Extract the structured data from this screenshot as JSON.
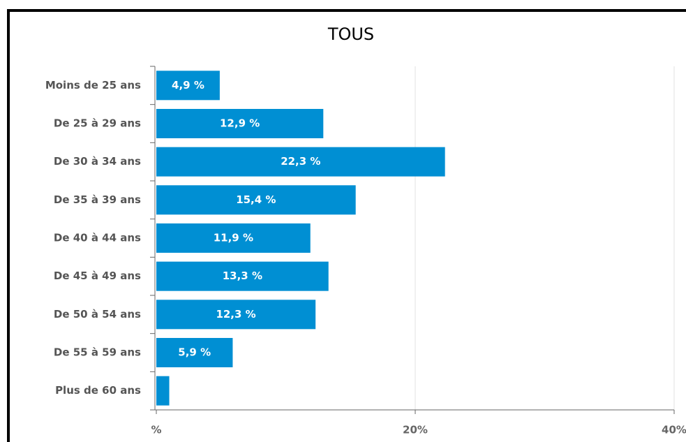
{
  "chart_data": {
    "type": "bar",
    "orientation": "horizontal",
    "title": "TOUS",
    "categories": [
      "Moins de 25 ans",
      "De 25 à 29 ans",
      "De 30 à 34 ans",
      "De 35 à 39 ans",
      "De 40 à 44 ans",
      "De 45 à 49 ans",
      "De 50 à 54 ans",
      "De 55 à 59 ans",
      "Plus de 60 ans"
    ],
    "values": [
      4.9,
      12.9,
      22.3,
      15.4,
      11.9,
      13.3,
      12.3,
      5.9,
      1.0
    ],
    "value_labels": [
      "4,9 %",
      "12,9 %",
      "22,3 %",
      "15,4 %",
      "11,9 %",
      "13,3 %",
      "12,3 %",
      "5,9 %",
      null
    ],
    "color": "#008fd3",
    "xlim": [
      0,
      40
    ],
    "xticks": [
      {
        "value": 0,
        "label": "%"
      },
      {
        "value": 20,
        "label": "20%"
      },
      {
        "value": 40,
        "label": "40%"
      }
    ],
    "grid": true
  }
}
